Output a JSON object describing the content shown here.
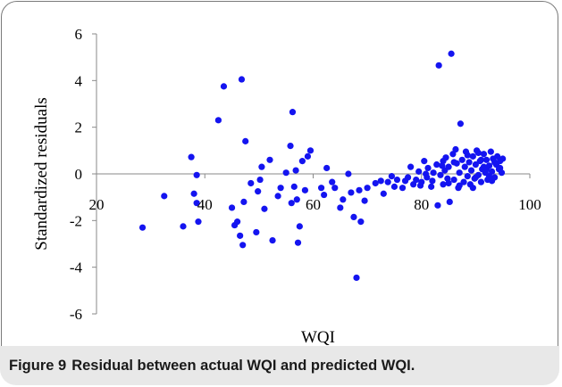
{
  "figure": {
    "number": "Figure 9",
    "caption": "Residual between actual WQI and predicted WQI."
  },
  "chart_data": {
    "type": "scatter",
    "title": "",
    "xlabel": "WQI",
    "ylabel": "Standardized residuals",
    "xlim": [
      20,
      100
    ],
    "ylim": [
      -6,
      6
    ],
    "x_ticks": [
      "20",
      "40",
      "60",
      "80",
      "100"
    ],
    "y_ticks": [
      "-6",
      "-4",
      "-2",
      "0",
      "2",
      "4",
      "6"
    ],
    "grid": false,
    "legend": "none",
    "marker_color": "#1414f0",
    "series": [
      {
        "points": [
          [
            28.5,
            -2.3
          ],
          [
            32.5,
            -0.95
          ],
          [
            36,
            -2.25
          ],
          [
            37.5,
            0.72
          ],
          [
            38,
            -0.85
          ],
          [
            38.5,
            -0.05
          ],
          [
            38.5,
            -1.25
          ],
          [
            38.8,
            -2.05
          ],
          [
            42.5,
            2.3
          ],
          [
            43.5,
            3.75
          ],
          [
            45,
            -1.45
          ],
          [
            45.5,
            -2.2
          ],
          [
            46,
            -2.05
          ],
          [
            46.5,
            -2.65
          ],
          [
            46.8,
            4.05
          ],
          [
            47,
            -3.05
          ],
          [
            47.5,
            1.4
          ],
          [
            47.2,
            -1.2
          ],
          [
            48.5,
            -0.4
          ],
          [
            49.5,
            -2.5
          ],
          [
            49.8,
            -0.75
          ],
          [
            50.2,
            -0.25
          ],
          [
            50.5,
            0.3
          ],
          [
            51,
            -1.5
          ],
          [
            52,
            0.6
          ],
          [
            52.5,
            -2.85
          ],
          [
            53.5,
            -0.95
          ],
          [
            54,
            -0.6
          ],
          [
            55,
            0.05
          ],
          [
            55.8,
            1.2
          ],
          [
            56,
            -1.25
          ],
          [
            56.2,
            2.65
          ],
          [
            56.5,
            -0.55
          ],
          [
            56.8,
            0.15
          ],
          [
            57,
            -1.1
          ],
          [
            57.2,
            -2.95
          ],
          [
            57.5,
            -2.25
          ],
          [
            58,
            0.55
          ],
          [
            58.5,
            -0.7
          ],
          [
            59,
            0.75
          ],
          [
            59.5,
            1.0
          ],
          [
            61.5,
            -0.6
          ],
          [
            62,
            -0.9
          ],
          [
            62.5,
            0.25
          ],
          [
            63.5,
            -0.35
          ],
          [
            64,
            -0.6
          ],
          [
            65,
            -1.45
          ],
          [
            65.5,
            -1.1
          ],
          [
            66.5,
            0.0
          ],
          [
            67,
            -0.8
          ],
          [
            67.5,
            -1.85
          ],
          [
            68,
            -4.45
          ],
          [
            68.5,
            -0.7
          ],
          [
            68.8,
            -2.05
          ],
          [
            69.5,
            -1.15
          ],
          [
            70,
            -0.6
          ],
          [
            71.5,
            -0.4
          ],
          [
            72.5,
            -0.3
          ],
          [
            73,
            -0.85
          ],
          [
            73.8,
            -0.35
          ],
          [
            74.5,
            -0.1
          ],
          [
            75,
            -0.55
          ],
          [
            75.5,
            -0.25
          ],
          [
            76.5,
            -0.6
          ],
          [
            77,
            -0.3
          ],
          [
            77.5,
            -0.15
          ],
          [
            78,
            0.3
          ],
          [
            78.5,
            -0.45
          ],
          [
            79,
            -0.25
          ],
          [
            79.5,
            0.1
          ],
          [
            80,
            -0.35
          ],
          [
            80.5,
            0.55
          ],
          [
            81,
            -0.15
          ],
          [
            81.2,
            0.25
          ],
          [
            81.8,
            -0.55
          ],
          [
            82.2,
            0.05
          ],
          [
            82.8,
            0.4
          ],
          [
            83,
            -1.35
          ],
          [
            83.2,
            4.65
          ],
          [
            83.5,
            -0.05
          ],
          [
            83.8,
            0.35
          ],
          [
            84,
            -0.45
          ],
          [
            84.3,
            0.15
          ],
          [
            84.5,
            0.7
          ],
          [
            84.8,
            -0.2
          ],
          [
            85,
            0.3
          ],
          [
            85.2,
            -1.2
          ],
          [
            85.5,
            5.15
          ],
          [
            85.8,
            0.85
          ],
          [
            86,
            -0.25
          ],
          [
            86.3,
            1.05
          ],
          [
            86.5,
            0.45
          ],
          [
            86.8,
            -0.6
          ],
          [
            87,
            0.05
          ],
          [
            87.2,
            2.15
          ],
          [
            87.5,
            0.6
          ],
          [
            87.8,
            -0.35
          ],
          [
            88,
            0.3
          ],
          [
            88.2,
            0.95
          ],
          [
            88.5,
            -0.1
          ],
          [
            88.8,
            0.5
          ],
          [
            89,
            -0.45
          ],
          [
            89.2,
            0.15
          ],
          [
            89.5,
            0.75
          ],
          [
            89.8,
            -0.2
          ],
          [
            90,
            0.4
          ],
          [
            90.2,
            1.0
          ],
          [
            90.5,
            -0.05
          ],
          [
            90.8,
            0.55
          ],
          [
            91,
            -0.35
          ],
          [
            91.2,
            0.2
          ],
          [
            91.5,
            0.85
          ],
          [
            91.8,
            0.05
          ],
          [
            92,
            0.6
          ],
          [
            92.2,
            -0.25
          ],
          [
            92.5,
            0.35
          ],
          [
            92.8,
            0.95
          ],
          [
            93,
            0.1
          ],
          [
            93.2,
            0.65
          ],
          [
            93.5,
            -0.15
          ],
          [
            93.8,
            0.4
          ],
          [
            94,
            0.75
          ],
          [
            94.3,
            0.2
          ],
          [
            94.5,
            0.55
          ],
          [
            94.8,
            0.05
          ],
          [
            95,
            0.65
          ],
          [
            89.5,
            -0.6
          ],
          [
            90.5,
            0.9
          ],
          [
            91.5,
            0.3
          ],
          [
            92.5,
            -0.1
          ],
          [
            93.5,
            0.5
          ],
          [
            94.5,
            0.25
          ],
          [
            91,
            0.6
          ],
          [
            92,
            0.2
          ],
          [
            93,
            -0.3
          ],
          [
            90,
            -0.15
          ],
          [
            88.5,
            0.8
          ],
          [
            87,
            -0.5
          ],
          [
            86,
            0.5
          ],
          [
            85,
            -0.4
          ],
          [
            84,
            0.55
          ],
          [
            82,
            -0.3
          ],
          [
            80.8,
            0.0
          ],
          [
            79.8,
            -0.5
          ]
        ]
      }
    ]
  }
}
